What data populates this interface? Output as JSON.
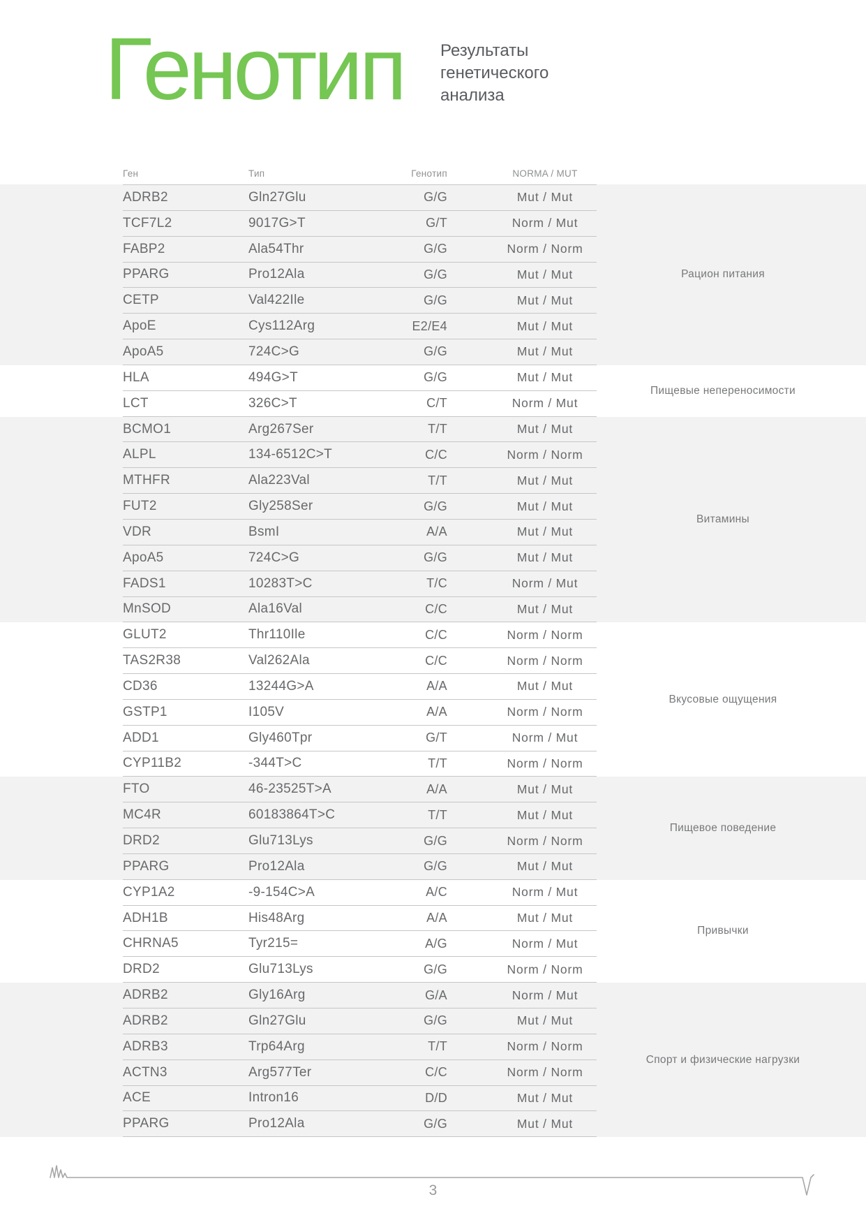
{
  "header": {
    "title": "Генотип",
    "subtitle_lines": [
      "Результаты",
      "генетического",
      "анализа"
    ]
  },
  "table": {
    "columns": [
      "Ген",
      "Тип",
      "Генотип",
      "NORMA / MUT"
    ],
    "groups": [
      {
        "label": "Рацион питания",
        "shaded": true,
        "rows": [
          [
            "ADRB2",
            "Gln27Glu",
            "G/G",
            "Mut / Mut"
          ],
          [
            "TCF7L2",
            "9017G>T",
            "G/T",
            "Norm / Mut"
          ],
          [
            "FABP2",
            "Ala54Thr",
            "G/G",
            "Norm / Norm"
          ],
          [
            "PPARG",
            "Pro12Ala",
            "G/G",
            "Mut / Mut"
          ],
          [
            "CETP",
            "Val422Ile",
            "G/G",
            "Mut / Mut"
          ],
          [
            "ApoE",
            "Cys112Arg",
            "E2/E4",
            "Mut / Mut"
          ],
          [
            "ApoA5",
            "724C>G",
            "G/G",
            "Mut / Mut"
          ]
        ]
      },
      {
        "label": "Пищевые непереносимости",
        "shaded": false,
        "rows": [
          [
            "HLA",
            "494G>T",
            "G/G",
            "Mut / Mut"
          ],
          [
            "LCT",
            "326C>T",
            "C/T",
            "Norm / Mut"
          ]
        ]
      },
      {
        "label": "Витамины",
        "shaded": true,
        "rows": [
          [
            "BCMO1",
            "Arg267Ser",
            "T/T",
            "Mut / Mut"
          ],
          [
            "ALPL",
            "134-6512C>T",
            "C/C",
            "Norm / Norm"
          ],
          [
            "MTHFR",
            "Ala223Val",
            "T/T",
            "Mut / Mut"
          ],
          [
            "FUT2",
            "Gly258Ser",
            "G/G",
            "Mut / Mut"
          ],
          [
            "VDR",
            "BsmI",
            "A/A",
            "Mut / Mut"
          ],
          [
            "ApoA5",
            "724C>G",
            "G/G",
            "Mut / Mut"
          ],
          [
            "FADS1",
            "10283T>C",
            "T/C",
            "Norm / Mut"
          ],
          [
            "MnSOD",
            "Ala16Val",
            "C/C",
            "Mut / Mut"
          ]
        ]
      },
      {
        "label": "Вкусовые ощущения",
        "shaded": false,
        "rows": [
          [
            "GLUT2",
            "Thr110Ile",
            "C/C",
            "Norm / Norm"
          ],
          [
            "TAS2R38",
            "Val262Ala",
            "C/C",
            "Norm / Norm"
          ],
          [
            "CD36",
            "13244G>A",
            "A/A",
            "Mut / Mut"
          ],
          [
            "GSTP1",
            "I105V",
            "A/A",
            "Norm / Norm"
          ],
          [
            "ADD1",
            "Gly460Tpr",
            "G/T",
            "Norm / Mut"
          ],
          [
            "CYP11B2",
            "-344T>C",
            "T/T",
            "Norm / Norm"
          ]
        ]
      },
      {
        "label": "Пищевое поведение",
        "shaded": true,
        "rows": [
          [
            "FTO",
            "46-23525T>A",
            "A/A",
            "Mut / Mut"
          ],
          [
            "MC4R",
            "60183864T>C",
            "T/T",
            "Mut / Mut"
          ],
          [
            "DRD2",
            "Glu713Lys",
            "G/G",
            "Norm / Norm"
          ],
          [
            "PPARG",
            "Pro12Ala",
            "G/G",
            "Mut / Mut"
          ]
        ]
      },
      {
        "label": "Привычки",
        "shaded": false,
        "rows": [
          [
            "CYP1A2",
            "-9-154C>A",
            "A/C",
            "Norm / Mut"
          ],
          [
            "ADH1B",
            "His48Arg",
            "A/A",
            "Mut / Mut"
          ],
          [
            "CHRNA5",
            "Tyr215=",
            "A/G",
            "Norm / Mut"
          ],
          [
            "DRD2",
            "Glu713Lys",
            "G/G",
            "Norm / Norm"
          ]
        ]
      },
      {
        "label": "Спорт и физические нагрузки",
        "shaded": true,
        "rows": [
          [
            "ADRB2",
            "Gly16Arg",
            "G/A",
            "Norm / Mut"
          ],
          [
            "ADRB2",
            "Gln27Glu",
            "G/G",
            "Mut / Mut"
          ],
          [
            "ADRB3",
            "Trp64Arg",
            "T/T",
            "Norm / Norm"
          ],
          [
            "ACTN3",
            "Arg577Ter",
            "C/C",
            "Norm / Norm"
          ],
          [
            "ACE",
            "Intron16",
            "D/D",
            "Mut / Mut"
          ],
          [
            "PPARG",
            "Pro12Ala",
            "G/G",
            "Mut / Mut"
          ]
        ]
      }
    ]
  },
  "footer": {
    "page_number": "3"
  },
  "colors": {
    "accent_green": "#75c653",
    "band_gray": "#f2f2f2",
    "divider_gray": "#c6c6c6",
    "text_gray": "#68696b",
    "column_header_gray": "#8f9092",
    "category_label_gray": "#77787a",
    "subtitle_gray": "#595b5f",
    "footer_line_gray": "#a6a6a6",
    "page_number_gray": "#9a9a9a"
  }
}
